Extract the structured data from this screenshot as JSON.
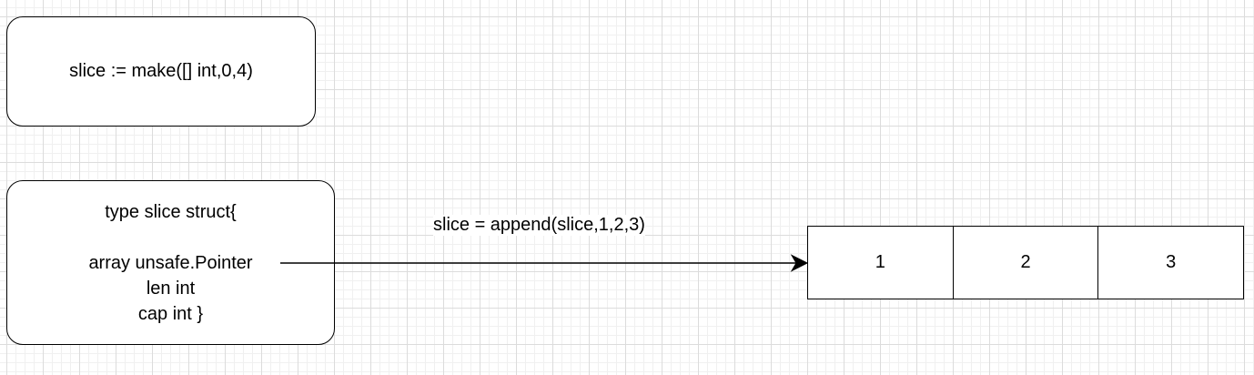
{
  "make_box": {
    "text": "slice := make([] int,0,4)"
  },
  "struct_box": {
    "line1": "type slice struct{",
    "line2": "array unsafe.Pointer",
    "line3": "len int",
    "line4": "cap int }"
  },
  "edge_label": "slice = append(slice,1,2,3)",
  "array_cells": [
    "1",
    "2",
    "3"
  ]
}
